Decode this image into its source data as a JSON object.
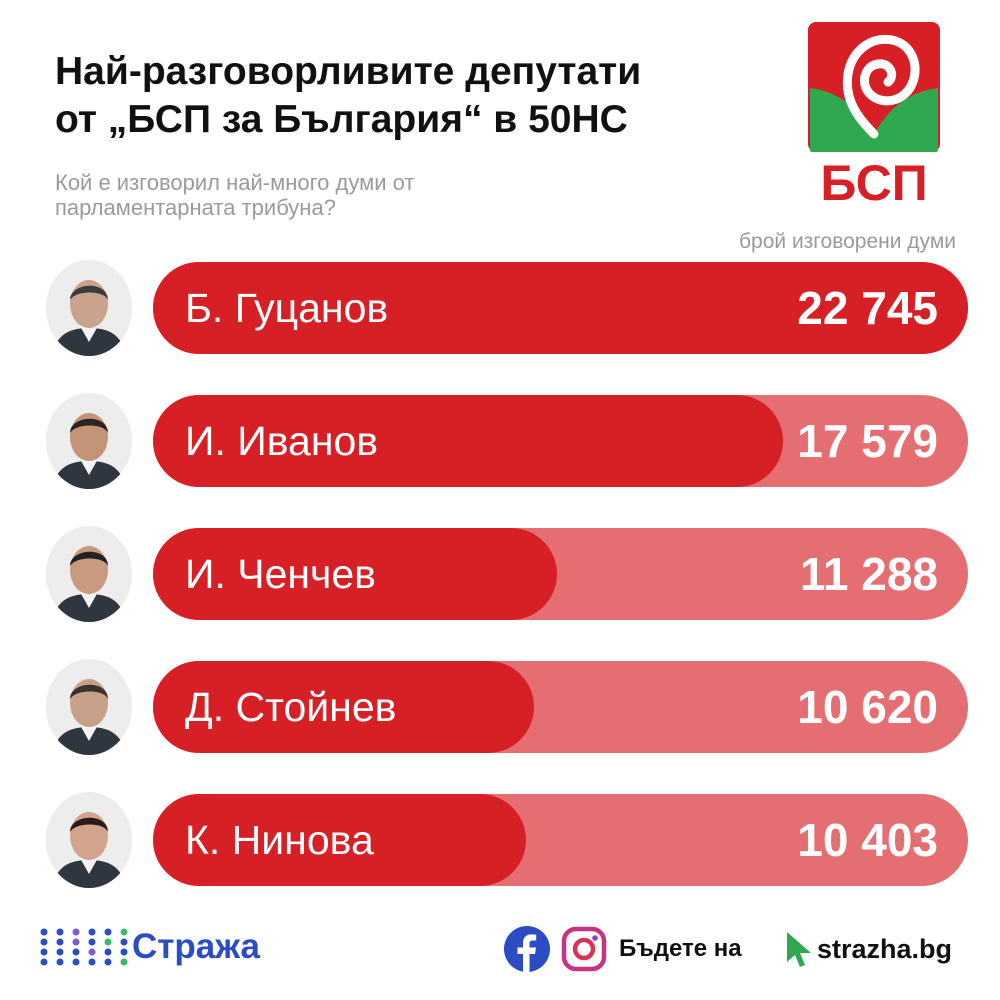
{
  "header": {
    "title_line1": "Най-разговорливите депутати",
    "title_line2": "от „БСП за България“ в 50НС",
    "subtitle_line1": "Кой е изговорил най-много думи от",
    "subtitle_line2": "парламентарната трибуна?",
    "logo_text": "БСП"
  },
  "chart_data": {
    "type": "bar",
    "orientation": "horizontal",
    "unit_label": "брой изговорени думи",
    "categories": [
      "Б. Гуцанов",
      "И. Иванов",
      "И. Ченчев",
      "Д. Стойнев",
      "К. Нинова"
    ],
    "values": [
      22745,
      17579,
      11288,
      10620,
      10403
    ],
    "value_labels": [
      "22 745",
      "17 579",
      "11 288",
      "10 620",
      "10 403"
    ],
    "xlim": [
      0,
      22745
    ],
    "colors": {
      "bar": "#d71f26",
      "track": "#e46e72"
    }
  },
  "footer": {
    "brand": "Стража",
    "cta": "Бъдете на",
    "site": "strazha.bg",
    "icons": [
      "facebook-icon",
      "instagram-icon",
      "cursor-icon"
    ]
  },
  "colors": {
    "brand_blue": "#2b4cc2",
    "logo_red": "#d71f26",
    "logo_green": "#2fa84f"
  }
}
